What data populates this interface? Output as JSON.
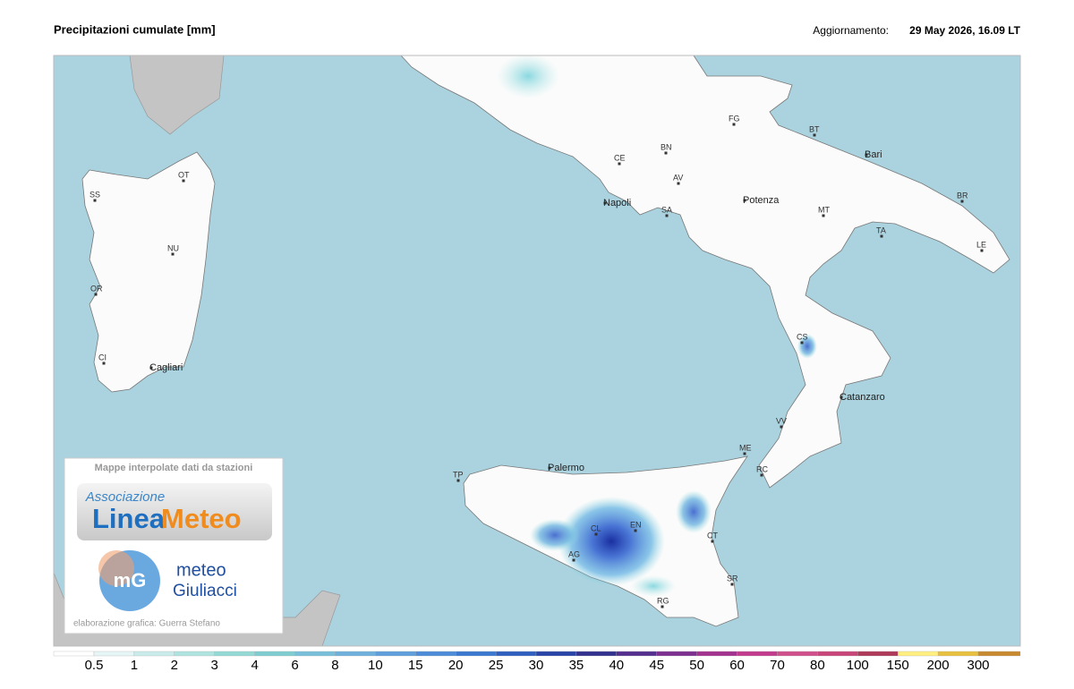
{
  "header": {
    "title": "Precipitazioni cumulate [mm]",
    "update_label": "Aggiornamento:",
    "update_time": "29 May 2026, 16.09 LT"
  },
  "map": {
    "cities": [
      "FG",
      "BT",
      "Bari",
      "CE",
      "BN",
      "AV",
      "Potenza",
      "MT",
      "BR",
      "TA",
      "LE",
      "Napoli",
      "SA",
      "SS",
      "OT",
      "NU",
      "OR",
      "CI",
      "Cagliari",
      "CS",
      "Catanzaro",
      "VV",
      "ME",
      "RC",
      "Palermo",
      "TP",
      "EN",
      "CL",
      "AG",
      "CT",
      "SR",
      "RG"
    ]
  },
  "logo": {
    "caption": "Mappe interpolate dati da stazioni",
    "association": "Associazione",
    "brand_part1": "Linea",
    "brand_part2": "Meteo",
    "mg": "mG",
    "meteo": "meteo",
    "giuliacci": "Giuliacci",
    "credit": "elaborazione grafica: Guerra Stefano"
  },
  "legend": {
    "labels": [
      0.5,
      1,
      2,
      3,
      4,
      6,
      8,
      10,
      15,
      20,
      25,
      30,
      35,
      40,
      45,
      50,
      60,
      70,
      80,
      100,
      150,
      200,
      300
    ],
    "colors": [
      "#ffffff",
      "#e6f5f5",
      "#c9ecea",
      "#aee3df",
      "#94d9d4",
      "#7fcdd0",
      "#79bfd9",
      "#6fb0dc",
      "#5f9fdc",
      "#4d8cd8",
      "#3b78d0",
      "#2f5fc0",
      "#2a45a8",
      "#34328f",
      "#55308f",
      "#7d3090",
      "#a4338f",
      "#c23b8c",
      "#d0508c",
      "#c8467a",
      "#b03a5a",
      "#ffee80",
      "#e8c040",
      "#c88a30",
      "#8a3a20"
    ]
  }
}
